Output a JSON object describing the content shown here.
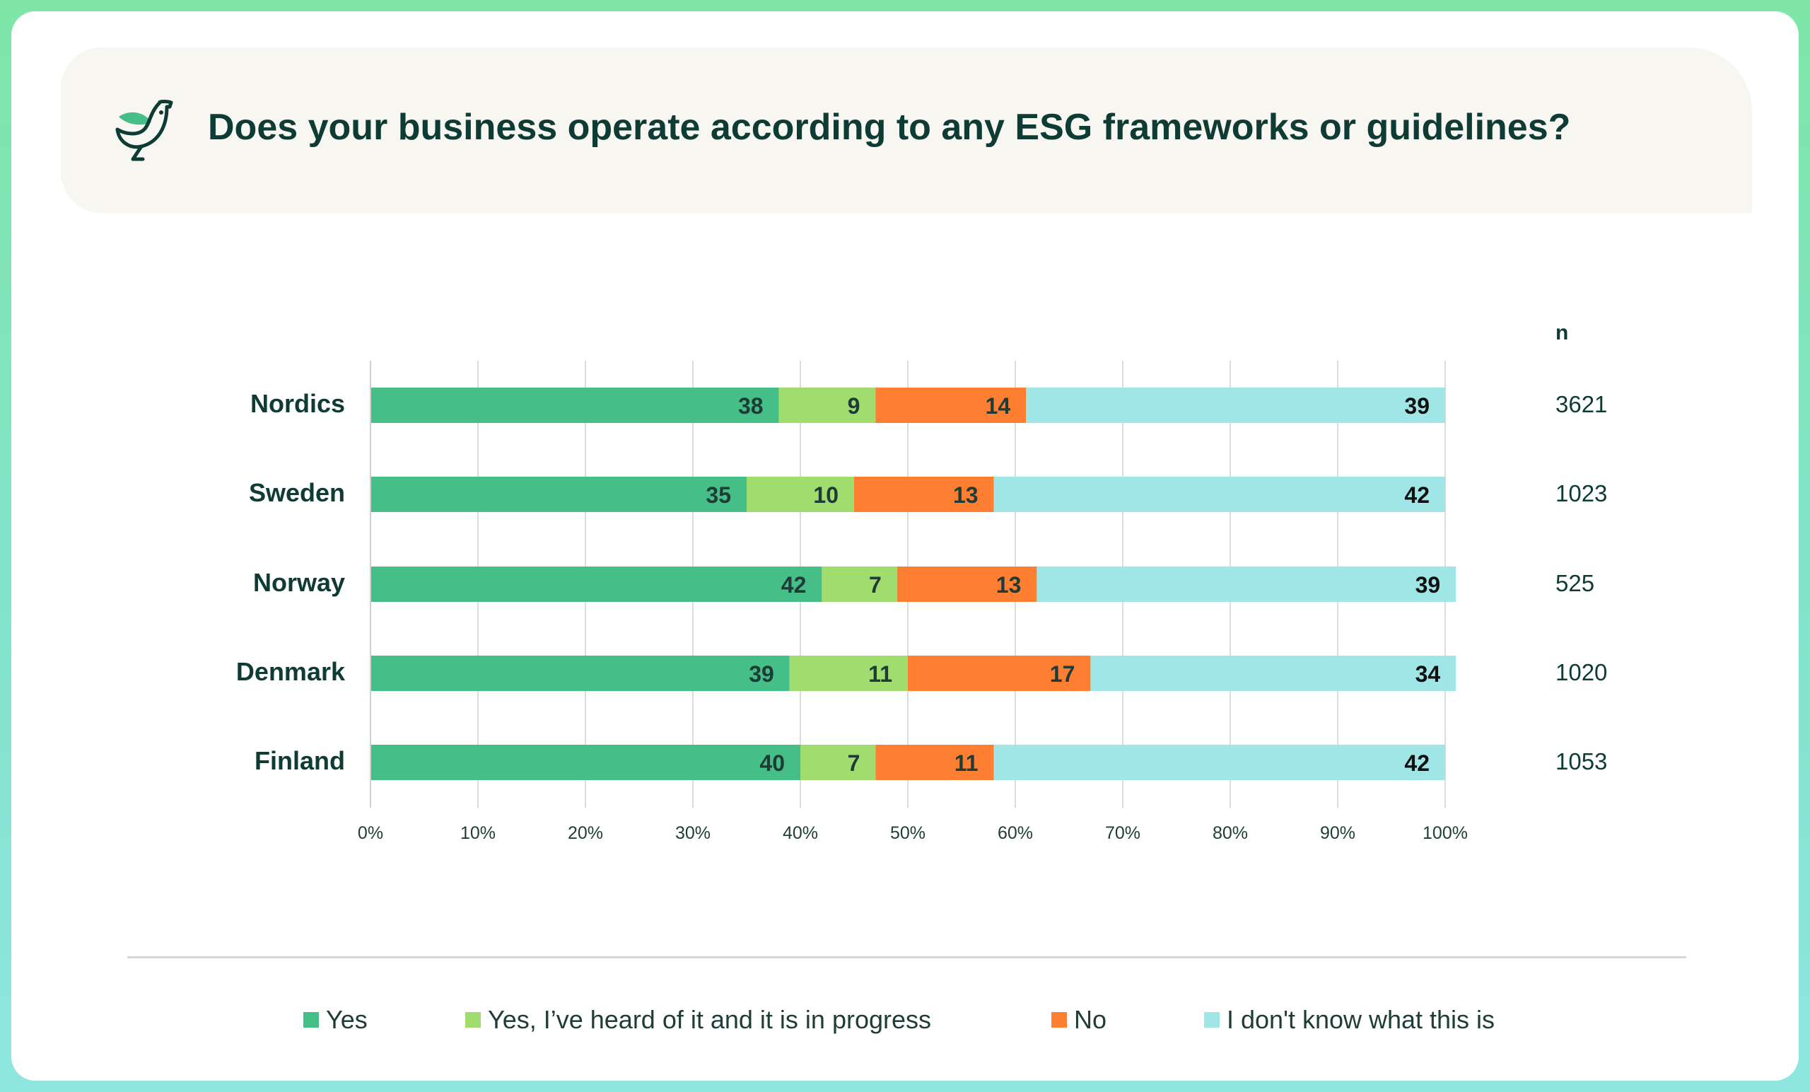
{
  "title": "Does your business operate according to any ESG frameworks or guidelines?",
  "icon": "bird-leaf-icon",
  "colors": {
    "brand_dark": "#0e3b34",
    "yes": "#46be88",
    "in_progress": "#a0dc6e",
    "no": "#ff7f32",
    "dont_know": "#a0e6e6"
  },
  "chart_data": {
    "type": "bar",
    "orientation": "horizontal",
    "stacked": true,
    "categories": [
      "Nordics",
      "Sweden",
      "Norway",
      "Denmark",
      "Finland"
    ],
    "series": [
      {
        "name": "Yes",
        "values": [
          38,
          35,
          42,
          39,
          40
        ]
      },
      {
        "name": "Yes, I’ve heard of it and it is in progress",
        "values": [
          9,
          10,
          7,
          11,
          7
        ]
      },
      {
        "name": "No",
        "values": [
          14,
          13,
          13,
          17,
          11
        ]
      },
      {
        "name": "I don't know what this is",
        "values": [
          39,
          42,
          39,
          34,
          42
        ]
      }
    ],
    "x_ticks": [
      "0%",
      "10%",
      "20%",
      "30%",
      "40%",
      "50%",
      "60%",
      "70%",
      "80%",
      "90%",
      "100%"
    ],
    "xlim": [
      0,
      100
    ],
    "grid": "vertical",
    "legend_position": "bottom",
    "n_header": "n",
    "n_values": [
      "3621",
      "1023",
      "525",
      "1020",
      "1053"
    ]
  }
}
